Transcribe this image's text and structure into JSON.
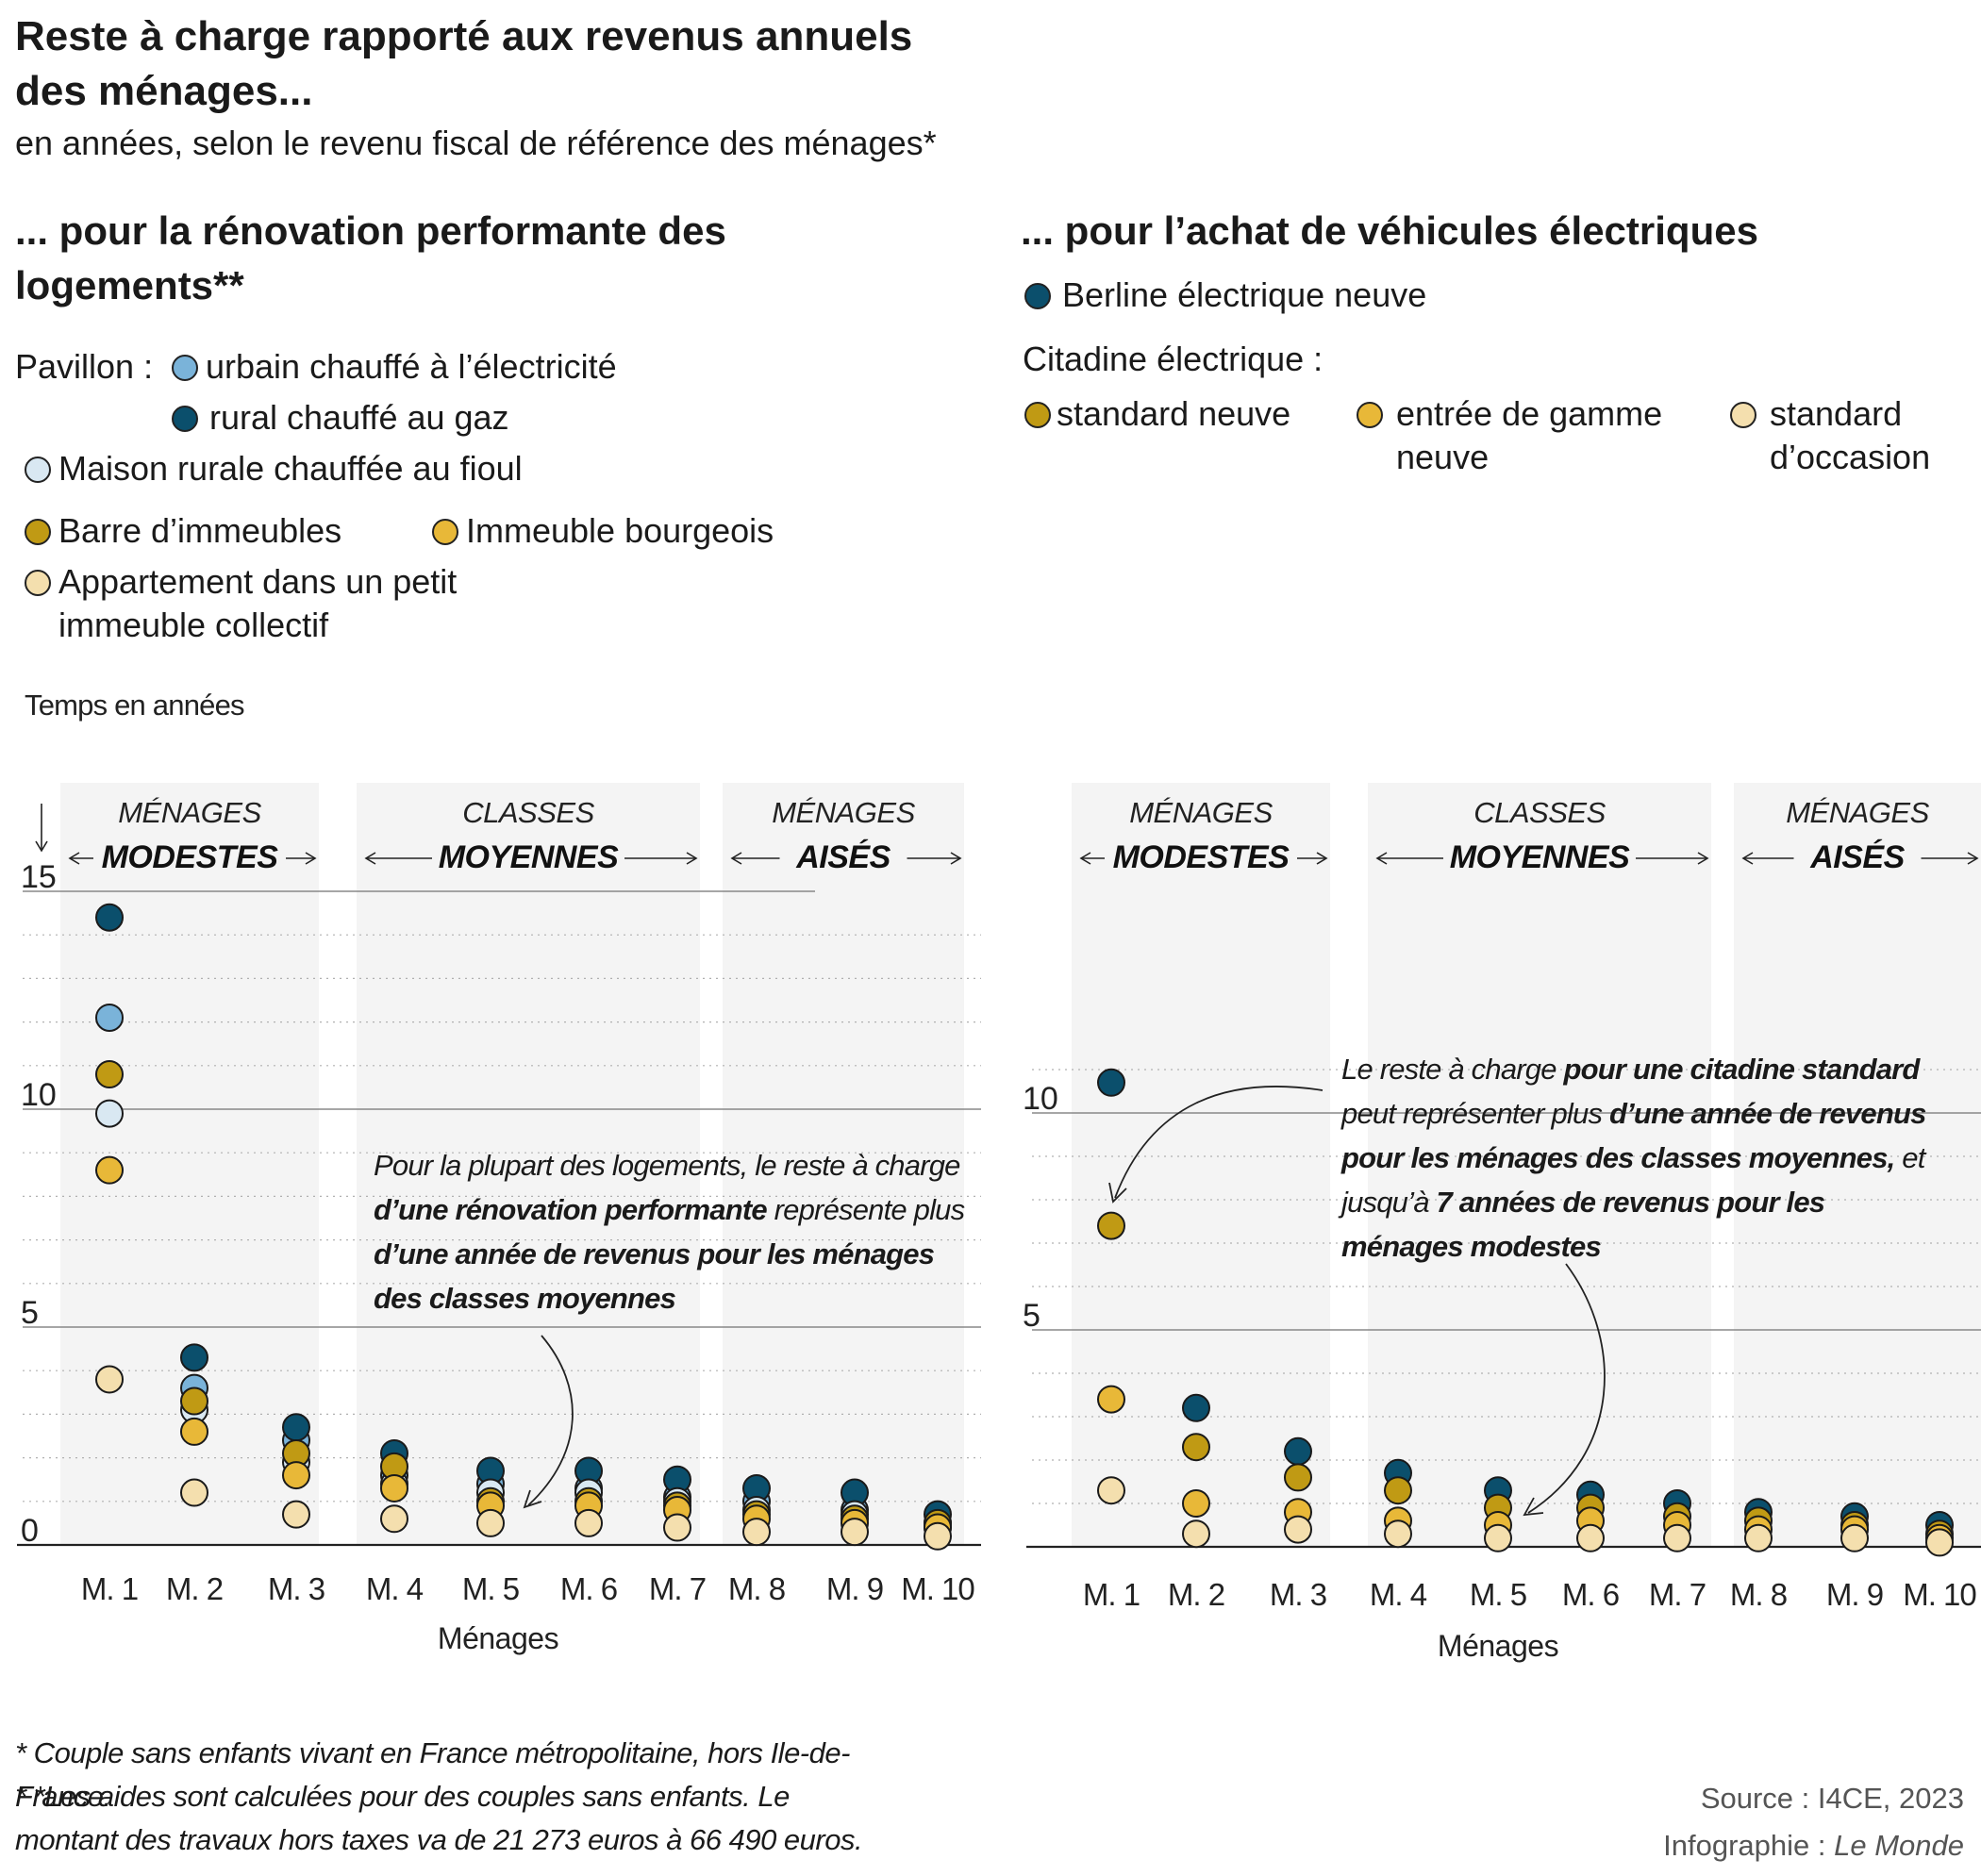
{
  "title": "Reste à charge rapporté aux revenus annuels des ménages...",
  "subtitle": "en années, selon le revenu fiscal de référence des ménages*",
  "left": {
    "heading": "... pour la rénovation performante des logements**",
    "legend": {
      "pavillon_label": "Pavillon :",
      "items": [
        {
          "label": "urbain chauffé à l’électricité",
          "color": "#7ab3d9"
        },
        {
          "label": "rural chauffé au gaz",
          "color": "#0b4f6c"
        },
        {
          "label": "Maison rurale chauffée au fioul",
          "color": "#d9e8f2"
        },
        {
          "label": "Barre d’immeubles",
          "color": "#c09a14"
        },
        {
          "label": "Immeuble bourgeois",
          "color": "#e8b838"
        },
        {
          "label": "Appartement dans un petit immeuble collectif",
          "color": "#f4dfae"
        }
      ]
    },
    "y_axis_title": "Temps en années",
    "annotation_parts": [
      "Pour la plupart des logements, le reste à charge ",
      "d’une rénovation performante",
      " représente plus ",
      "d’une année de revenus pour les ménages des classes moyennes"
    ]
  },
  "right": {
    "heading": "... pour l’achat de véhicules électriques",
    "legend": {
      "berline_label": "Berline électrique neuve",
      "citadine_label": "Citadine électrique :",
      "items": [
        {
          "label": "Berline électrique neuve",
          "color": "#0b4f6c"
        },
        {
          "label": "standard neuve",
          "color": "#c09a14"
        },
        {
          "label": "entrée de gamme neuve",
          "color": "#e8b838"
        },
        {
          "label": "standard d’occasion",
          "color": "#f4dfae"
        }
      ]
    },
    "annotation_parts": [
      "Le reste à charge ",
      "pour une citadine standard",
      " peut représenter plus ",
      "d’une année de revenus pour les ménages des classes moyennes,",
      " et jusqu’à ",
      "7 années de revenus pour les ménages modestes"
    ]
  },
  "bands": [
    {
      "top": "MÉNAGES",
      "bottom": "MODESTES"
    },
    {
      "top": "CLASSES",
      "bottom": "MOYENNES"
    },
    {
      "top": "MÉNAGES",
      "bottom": "AISÉS"
    }
  ],
  "chart_data": [
    {
      "type": "scatter",
      "title": "... pour la rénovation performante des logements**",
      "xlabel": "Ménages",
      "ylabel": "Temps en années",
      "ylim": [
        0,
        15
      ],
      "yticks": [
        0,
        5,
        10,
        15
      ],
      "categories": [
        "M. 1",
        "M. 2",
        "M. 3",
        "M. 4",
        "M. 5",
        "M. 6",
        "M. 7",
        "M. 8",
        "M. 9",
        "M. 10"
      ],
      "series": [
        {
          "name": "Pavillon urbain chauffé à l’électricité",
          "color": "#7ab3d9",
          "values": [
            12.1,
            3.6,
            2.4,
            1.6,
            1.4,
            1.3,
            1.1,
            1.0,
            0.8,
            0.5
          ]
        },
        {
          "name": "Pavillon rural chauffé au gaz",
          "color": "#0b4f6c",
          "values": [
            14.4,
            4.3,
            2.7,
            2.1,
            1.7,
            1.7,
            1.5,
            1.3,
            1.2,
            0.7
          ]
        },
        {
          "name": "Maison rurale chauffée au fioul",
          "color": "#d9e8f2",
          "values": [
            9.9,
            3.1,
            1.9,
            1.4,
            1.2,
            1.2,
            1.0,
            0.8,
            0.7,
            0.4
          ]
        },
        {
          "name": "Barre d’immeubles",
          "color": "#c09a14",
          "values": [
            10.8,
            3.3,
            2.1,
            1.8,
            1.0,
            1.0,
            0.9,
            0.7,
            0.6,
            0.5
          ]
        },
        {
          "name": "Immeuble bourgeois",
          "color": "#e8b838",
          "values": [
            8.6,
            2.6,
            1.6,
            1.3,
            0.9,
            0.9,
            0.8,
            0.6,
            0.5,
            0.4
          ]
        },
        {
          "name": "Appartement dans un petit immeuble collectif",
          "color": "#f4dfae",
          "values": [
            3.8,
            1.2,
            0.7,
            0.6,
            0.5,
            0.5,
            0.4,
            0.3,
            0.3,
            0.2
          ]
        }
      ]
    },
    {
      "type": "scatter",
      "title": "... pour l’achat de véhicules électriques",
      "xlabel": "Ménages",
      "ylim": [
        0,
        15
      ],
      "yticks": [
        5,
        10
      ],
      "categories": [
        "M. 1",
        "M. 2",
        "M. 3",
        "M. 4",
        "M. 5",
        "M. 6",
        "M. 7",
        "M. 8",
        "M. 9",
        "M. 10"
      ],
      "series": [
        {
          "name": "Berline électrique neuve",
          "color": "#0b4f6c",
          "values": [
            10.7,
            3.2,
            2.2,
            1.7,
            1.3,
            1.2,
            1.0,
            0.8,
            0.7,
            0.5
          ]
        },
        {
          "name": "Citadine électrique standard neuve",
          "color": "#c09a14",
          "values": [
            7.4,
            2.3,
            1.6,
            1.3,
            0.9,
            0.9,
            0.7,
            0.6,
            0.5,
            0.3
          ]
        },
        {
          "name": "Citadine électrique entrée de gamme neuve",
          "color": "#e8b838",
          "values": [
            3.4,
            1.0,
            0.8,
            0.6,
            0.5,
            0.6,
            0.5,
            0.4,
            0.4,
            0.2
          ]
        },
        {
          "name": "Citadine électrique standard d’occasion",
          "color": "#f4dfae",
          "values": [
            1.3,
            0.3,
            0.4,
            0.3,
            0.2,
            0.2,
            0.2,
            0.2,
            0.2,
            0.1
          ]
        }
      ]
    }
  ],
  "footnotes": [
    "* Couple sans enfants vivant en France métropolitaine, hors Ile-de-France.",
    "* *Les aides sont calculées pour des couples sans enfants. Le montant des travaux hors taxes va de 21 273 euros à 66 490 euros."
  ],
  "source": "Source : I4CE, 2023",
  "credit_prefix": "Infographie : ",
  "credit_name": "Le Monde"
}
